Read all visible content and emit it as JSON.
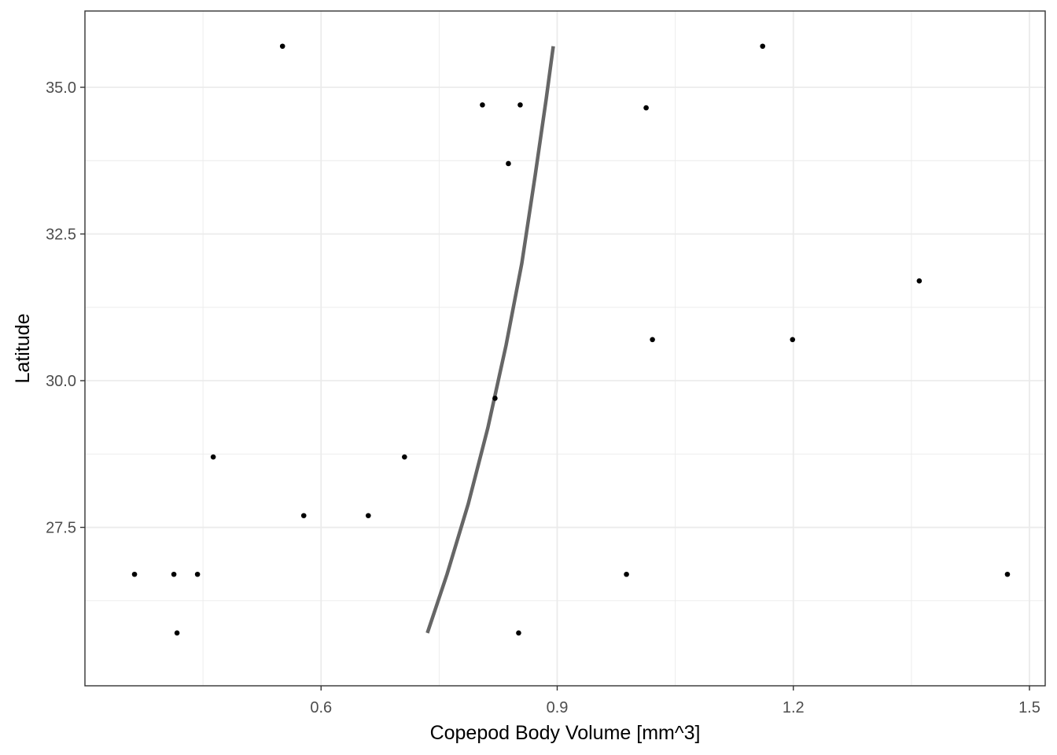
{
  "chart_data": {
    "type": "scatter",
    "title": "",
    "xlabel": "Copepod Body Volume [mm^3]",
    "ylabel": "Latitude",
    "xlim": [
      0.3,
      1.52
    ],
    "ylim": [
      24.8,
      36.3
    ],
    "x_ticks": [
      0.6,
      0.9,
      1.2,
      1.5
    ],
    "x_tick_labels": [
      "0.6",
      "0.9",
      "1.2",
      "1.5"
    ],
    "x_minor_ticks": [
      0.45,
      0.75,
      1.05,
      1.35
    ],
    "y_ticks": [
      27.5,
      30.0,
      32.5,
      35.0
    ],
    "y_tick_labels": [
      "27.5",
      "30.0",
      "32.5",
      "35.0"
    ],
    "y_minor_ticks": [
      26.25,
      28.75,
      31.25,
      33.75
    ],
    "grid": true,
    "theme": "bw",
    "points": [
      {
        "x": 0.363,
        "y": 26.7
      },
      {
        "x": 0.413,
        "y": 26.7
      },
      {
        "x": 0.443,
        "y": 26.7
      },
      {
        "x": 0.417,
        "y": 25.7
      },
      {
        "x": 0.463,
        "y": 28.7
      },
      {
        "x": 0.551,
        "y": 35.7
      },
      {
        "x": 0.578,
        "y": 27.7
      },
      {
        "x": 0.66,
        "y": 27.7
      },
      {
        "x": 0.706,
        "y": 28.7
      },
      {
        "x": 0.805,
        "y": 34.7
      },
      {
        "x": 0.853,
        "y": 34.7
      },
      {
        "x": 0.838,
        "y": 33.7
      },
      {
        "x": 0.821,
        "y": 29.7
      },
      {
        "x": 0.851,
        "y": 25.7
      },
      {
        "x": 0.988,
        "y": 26.7
      },
      {
        "x": 1.013,
        "y": 34.65
      },
      {
        "x": 1.021,
        "y": 30.7
      },
      {
        "x": 1.161,
        "y": 35.7
      },
      {
        "x": 1.199,
        "y": 30.7
      },
      {
        "x": 1.36,
        "y": 31.7
      },
      {
        "x": 1.472,
        "y": 26.7
      }
    ],
    "fit_line": [
      {
        "x": 0.735,
        "y": 25.7
      },
      {
        "x": 0.76,
        "y": 26.7
      },
      {
        "x": 0.787,
        "y": 27.9
      },
      {
        "x": 0.812,
        "y": 29.2
      },
      {
        "x": 0.835,
        "y": 30.6
      },
      {
        "x": 0.855,
        "y": 32.0
      },
      {
        "x": 0.872,
        "y": 33.5
      },
      {
        "x": 0.886,
        "y": 34.8
      },
      {
        "x": 0.895,
        "y": 35.7
      }
    ],
    "colors": {
      "points": "#000000",
      "fit_line": "#666666",
      "grid": "#ebebeb",
      "panel_border": "#333333"
    }
  }
}
